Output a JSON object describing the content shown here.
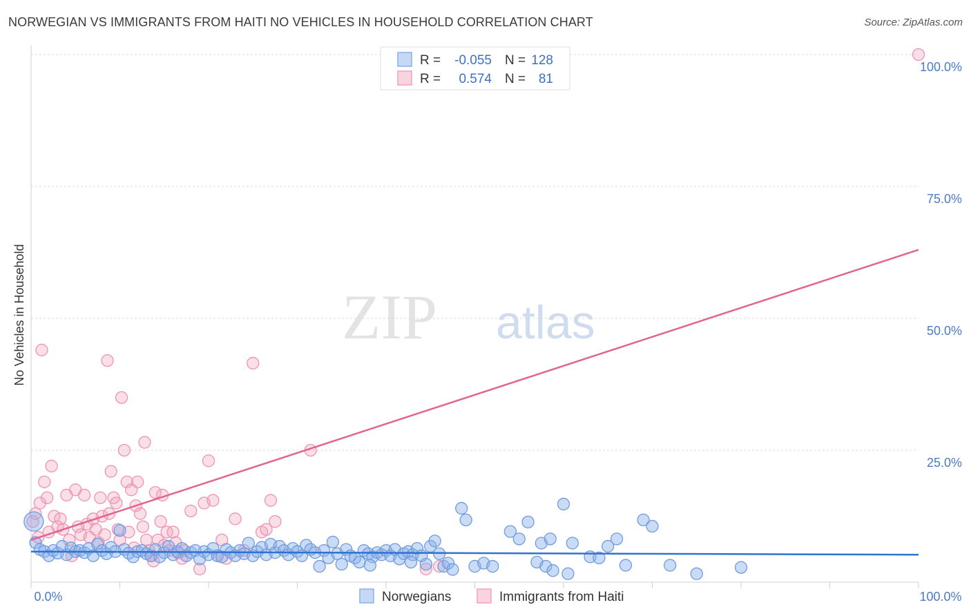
{
  "header": {
    "title": "NORWEGIAN VS IMMIGRANTS FROM HAITI NO VEHICLES IN HOUSEHOLD CORRELATION CHART",
    "source": "Source: ZipAtlas.com"
  },
  "watermark": {
    "zip": "ZIP",
    "atlas": "atlas"
  },
  "colors": {
    "blue": "#8ab0e8",
    "blue_line": "#2f73d0",
    "pink": "#f2a2bd",
    "pink_line": "#e0648f",
    "grid": "#d8d8d8",
    "tick_text": "#4a7bc8"
  },
  "legend": {
    "rows": [
      {
        "r_label": "R =",
        "r_value": "-0.055",
        "n_label": "N =",
        "n_value": "128",
        "color": "#8ab0e8"
      },
      {
        "r_label": "R =",
        "r_value": "0.574",
        "n_label": "N =",
        "n_value": "81",
        "color": "#f2a2bd"
      }
    ]
  },
  "bottom_legend": [
    {
      "label": "Norwegians",
      "color": "#8ab0e8"
    },
    {
      "label": "Immigrants from Haiti",
      "color": "#f2a2bd"
    }
  ],
  "chart_data": {
    "type": "scatter",
    "title": "NORWEGIAN VS IMMIGRANTS FROM HAITI NO VEHICLES IN HOUSEHOLD CORRELATION CHART",
    "xlabel": "",
    "ylabel": "No Vehicles in Household",
    "xlim": [
      0,
      100
    ],
    "ylim": [
      0,
      100
    ],
    "x_tick_labels": [
      "0.0%",
      "100.0%"
    ],
    "y_ticks": [
      25,
      50,
      75,
      100
    ],
    "y_tick_labels": [
      "25.0%",
      "50.0%",
      "75.0%",
      "100.0%"
    ],
    "grid": true,
    "series": [
      {
        "name": "Norwegians",
        "color": "#8ab0e8",
        "trend": {
          "x": [
            0,
            100
          ],
          "y": [
            5.8,
            5.2
          ]
        },
        "points": [
          [
            0.3,
            11.5
          ],
          [
            0.5,
            7.5
          ],
          [
            1.0,
            6.2
          ],
          [
            1.5,
            5.8
          ],
          [
            2.0,
            5.0
          ],
          [
            2.5,
            6.0
          ],
          [
            3.0,
            5.5
          ],
          [
            3.5,
            6.8
          ],
          [
            4.0,
            5.2
          ],
          [
            4.5,
            6.5
          ],
          [
            5.0,
            5.8
          ],
          [
            5.5,
            6.0
          ],
          [
            6.0,
            5.6
          ],
          [
            6.5,
            6.4
          ],
          [
            7.0,
            5.0
          ],
          [
            7.5,
            7.2
          ],
          [
            8.0,
            6.0
          ],
          [
            8.5,
            5.4
          ],
          [
            9.0,
            6.6
          ],
          [
            9.5,
            5.8
          ],
          [
            10.0,
            9.8
          ],
          [
            10.5,
            6.2
          ],
          [
            11.0,
            5.5
          ],
          [
            11.5,
            4.8
          ],
          [
            12.0,
            5.8
          ],
          [
            12.5,
            6.0
          ],
          [
            13.0,
            5.4
          ],
          [
            13.5,
            5.0
          ],
          [
            14.0,
            6.2
          ],
          [
            14.5,
            4.8
          ],
          [
            15.0,
            5.6
          ],
          [
            15.5,
            6.8
          ],
          [
            16.0,
            5.2
          ],
          [
            16.5,
            5.8
          ],
          [
            17.0,
            6.4
          ],
          [
            17.5,
            5.0
          ],
          [
            18.0,
            5.6
          ],
          [
            18.5,
            6.0
          ],
          [
            19.0,
            4.4
          ],
          [
            19.5,
            5.8
          ],
          [
            20.0,
            5.2
          ],
          [
            20.5,
            6.4
          ],
          [
            21.0,
            5.0
          ],
          [
            21.5,
            4.8
          ],
          [
            22.0,
            6.2
          ],
          [
            22.5,
            5.6
          ],
          [
            23.0,
            5.0
          ],
          [
            23.5,
            6.0
          ],
          [
            24.0,
            5.4
          ],
          [
            24.5,
            7.4
          ],
          [
            25.0,
            5.0
          ],
          [
            25.5,
            5.8
          ],
          [
            26.0,
            6.6
          ],
          [
            26.5,
            5.2
          ],
          [
            27.0,
            7.2
          ],
          [
            27.5,
            5.6
          ],
          [
            28.0,
            6.8
          ],
          [
            28.5,
            6.0
          ],
          [
            29.0,
            5.2
          ],
          [
            29.5,
            6.4
          ],
          [
            30.0,
            5.8
          ],
          [
            30.5,
            5.0
          ],
          [
            31.0,
            7.0
          ],
          [
            31.5,
            6.2
          ],
          [
            32.0,
            5.6
          ],
          [
            32.5,
            3.0
          ],
          [
            33.0,
            6.0
          ],
          [
            33.5,
            4.6
          ],
          [
            34.0,
            7.6
          ],
          [
            34.5,
            5.4
          ],
          [
            35.0,
            3.4
          ],
          [
            35.5,
            6.2
          ],
          [
            36.0,
            5.0
          ],
          [
            36.5,
            4.6
          ],
          [
            37.0,
            3.8
          ],
          [
            37.5,
            6.0
          ],
          [
            38.0,
            5.4
          ],
          [
            38.5,
            4.8
          ],
          [
            39.0,
            5.6
          ],
          [
            39.5,
            5.2
          ],
          [
            40.0,
            6.0
          ],
          [
            40.5,
            5.0
          ],
          [
            41.0,
            6.2
          ],
          [
            41.5,
            4.4
          ],
          [
            42.0,
            5.4
          ],
          [
            42.5,
            5.8
          ],
          [
            43.0,
            5.2
          ],
          [
            43.5,
            6.4
          ],
          [
            44.0,
            5.0
          ],
          [
            44.5,
            3.4
          ],
          [
            45.0,
            6.8
          ],
          [
            45.5,
            7.8
          ],
          [
            46.0,
            5.4
          ],
          [
            46.5,
            3.0
          ],
          [
            47.0,
            3.6
          ],
          [
            47.5,
            2.4
          ],
          [
            48.5,
            14.0
          ],
          [
            49.0,
            11.8
          ],
          [
            50.0,
            3.0
          ],
          [
            51.0,
            3.6
          ],
          [
            52.0,
            3.0
          ],
          [
            54.0,
            9.6
          ],
          [
            55.0,
            8.2
          ],
          [
            56.0,
            11.4
          ],
          [
            57.0,
            3.8
          ],
          [
            57.5,
            7.4
          ],
          [
            58.0,
            3.0
          ],
          [
            58.5,
            8.2
          ],
          [
            60.0,
            14.8
          ],
          [
            61.0,
            7.4
          ],
          [
            63.0,
            4.8
          ],
          [
            64.0,
            4.6
          ],
          [
            65.0,
            6.8
          ],
          [
            66.0,
            8.2
          ],
          [
            67.0,
            3.2
          ],
          [
            69.0,
            11.8
          ],
          [
            70.0,
            10.6
          ],
          [
            72.0,
            3.2
          ],
          [
            75.0,
            1.6
          ],
          [
            60.5,
            1.6
          ],
          [
            80.0,
            2.8
          ],
          [
            42.8,
            3.8
          ],
          [
            38.2,
            3.2
          ],
          [
            58.8,
            2.2
          ]
        ]
      },
      {
        "name": "Immigrants from Haiti",
        "color": "#f2a2bd",
        "trend": {
          "x": [
            0,
            100
          ],
          "y": [
            8.0,
            63.0
          ]
        },
        "points": [
          [
            0.2,
            11.5
          ],
          [
            0.5,
            13.0
          ],
          [
            0.8,
            8.5
          ],
          [
            1.0,
            15.0
          ],
          [
            1.2,
            44.0
          ],
          [
            1.5,
            19.0
          ],
          [
            1.8,
            16.0
          ],
          [
            2.0,
            9.5
          ],
          [
            2.3,
            22.0
          ],
          [
            2.6,
            12.5
          ],
          [
            3.0,
            10.5
          ],
          [
            3.3,
            12.0
          ],
          [
            3.6,
            10.0
          ],
          [
            4.0,
            16.5
          ],
          [
            4.3,
            8.0
          ],
          [
            4.6,
            5.0
          ],
          [
            5.0,
            17.5
          ],
          [
            5.3,
            10.5
          ],
          [
            5.6,
            9.0
          ],
          [
            6.0,
            16.5
          ],
          [
            6.3,
            11.0
          ],
          [
            6.6,
            8.5
          ],
          [
            7.0,
            12.0
          ],
          [
            7.3,
            10.0
          ],
          [
            7.6,
            7.5
          ],
          [
            7.8,
            16.0
          ],
          [
            8.0,
            12.5
          ],
          [
            8.3,
            9.0
          ],
          [
            8.6,
            42.0
          ],
          [
            8.8,
            13.0
          ],
          [
            9.0,
            21.0
          ],
          [
            9.3,
            16.0
          ],
          [
            9.6,
            15.0
          ],
          [
            9.8,
            10.0
          ],
          [
            10.0,
            8.0
          ],
          [
            10.2,
            35.0
          ],
          [
            10.5,
            25.0
          ],
          [
            10.8,
            19.0
          ],
          [
            11.0,
            9.5
          ],
          [
            11.3,
            17.5
          ],
          [
            11.6,
            6.5
          ],
          [
            11.8,
            14.5
          ],
          [
            12.0,
            19.0
          ],
          [
            12.3,
            13.0
          ],
          [
            12.6,
            10.5
          ],
          [
            12.8,
            26.5
          ],
          [
            13.0,
            8.0
          ],
          [
            13.3,
            6.0
          ],
          [
            13.6,
            5.0
          ],
          [
            13.8,
            4.0
          ],
          [
            14.0,
            17.0
          ],
          [
            14.3,
            8.0
          ],
          [
            14.6,
            11.5
          ],
          [
            14.8,
            16.5
          ],
          [
            15.0,
            7.0
          ],
          [
            15.3,
            9.5
          ],
          [
            15.6,
            6.0
          ],
          [
            16.0,
            9.5
          ],
          [
            16.3,
            7.5
          ],
          [
            16.6,
            5.5
          ],
          [
            17.0,
            4.5
          ],
          [
            17.3,
            6.0
          ],
          [
            18.0,
            13.5
          ],
          [
            19.0,
            2.5
          ],
          [
            19.5,
            15.0
          ],
          [
            20.0,
            23.0
          ],
          [
            20.5,
            15.5
          ],
          [
            21.0,
            5.0
          ],
          [
            21.5,
            8.0
          ],
          [
            22.0,
            4.5
          ],
          [
            23.0,
            12.0
          ],
          [
            24.0,
            6.0
          ],
          [
            25.0,
            41.5
          ],
          [
            26.0,
            9.5
          ],
          [
            27.0,
            15.5
          ],
          [
            27.5,
            11.5
          ],
          [
            31.5,
            25.0
          ],
          [
            26.5,
            10.0
          ],
          [
            44.5,
            2.5
          ],
          [
            46.0,
            3.0
          ],
          [
            100.0,
            100.0
          ]
        ]
      }
    ]
  }
}
